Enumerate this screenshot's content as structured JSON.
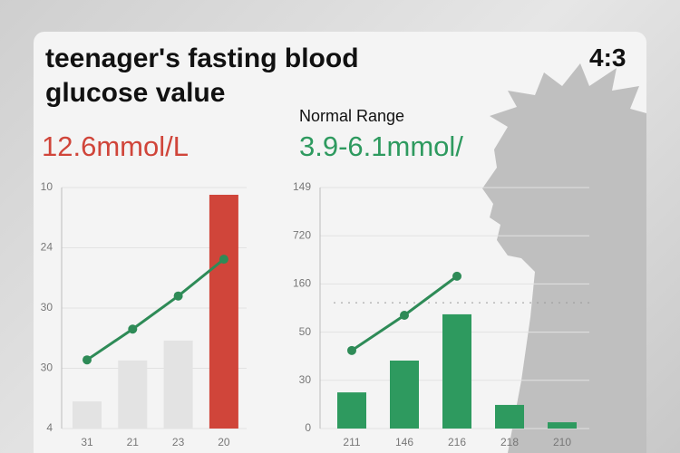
{
  "header": {
    "title": "teenager's fasting blood glucose value",
    "ratio": "4:3"
  },
  "chart_data": [
    {
      "type": "bar",
      "title": "12.6mmol/L",
      "title_color": "#d0453a",
      "categories": [
        "31",
        "21",
        "23",
        "20"
      ],
      "series": [
        {
          "type": "bar",
          "colors": [
            "#e3e3e3",
            "#e3e3e3",
            "#e3e3e3",
            "#d0453a"
          ],
          "values": [
            0.45,
            1.13,
            1.46,
            3.88
          ]
        },
        {
          "type": "line",
          "color": "#2e8b57",
          "values": [
            1.14,
            1.65,
            2.2,
            2.81
          ]
        }
      ],
      "ylim": [
        0,
        4
      ],
      "yticks": [
        {
          "value": 0,
          "label": "4"
        },
        {
          "value": 1,
          "label": "30"
        },
        {
          "value": 2,
          "label": "30"
        },
        {
          "value": 3,
          "label": "24"
        },
        {
          "value": 4,
          "label": "10"
        }
      ],
      "grid": true
    },
    {
      "type": "bar",
      "subtitle": "Normal Range",
      "title": "3.9-6.1mmol/",
      "title_color": "#2e9a5f",
      "categories": [
        "211",
        "146",
        "216",
        "218",
        "210"
      ],
      "series": [
        {
          "type": "bar",
          "colors": [
            "#2e9a5f",
            "#2e9a5f",
            "#2e9a5f",
            "#2e9a5f",
            "#2e9a5f"
          ],
          "values": [
            0.75,
            1.41,
            2.37,
            0.49,
            0.13
          ]
        },
        {
          "type": "line",
          "color": "#2e8b57",
          "values": [
            1.62,
            2.35,
            3.16,
            null,
            null
          ]
        }
      ],
      "reference_line": 2.61,
      "ylim": [
        0,
        5
      ],
      "yticks": [
        {
          "value": 0,
          "label": "0"
        },
        {
          "value": 1,
          "label": "30"
        },
        {
          "value": 2,
          "label": "50"
        },
        {
          "value": 3,
          "label": "160"
        },
        {
          "value": 4,
          "label": "720"
        },
        {
          "value": 5,
          "label": "149"
        }
      ],
      "grid": true
    }
  ]
}
